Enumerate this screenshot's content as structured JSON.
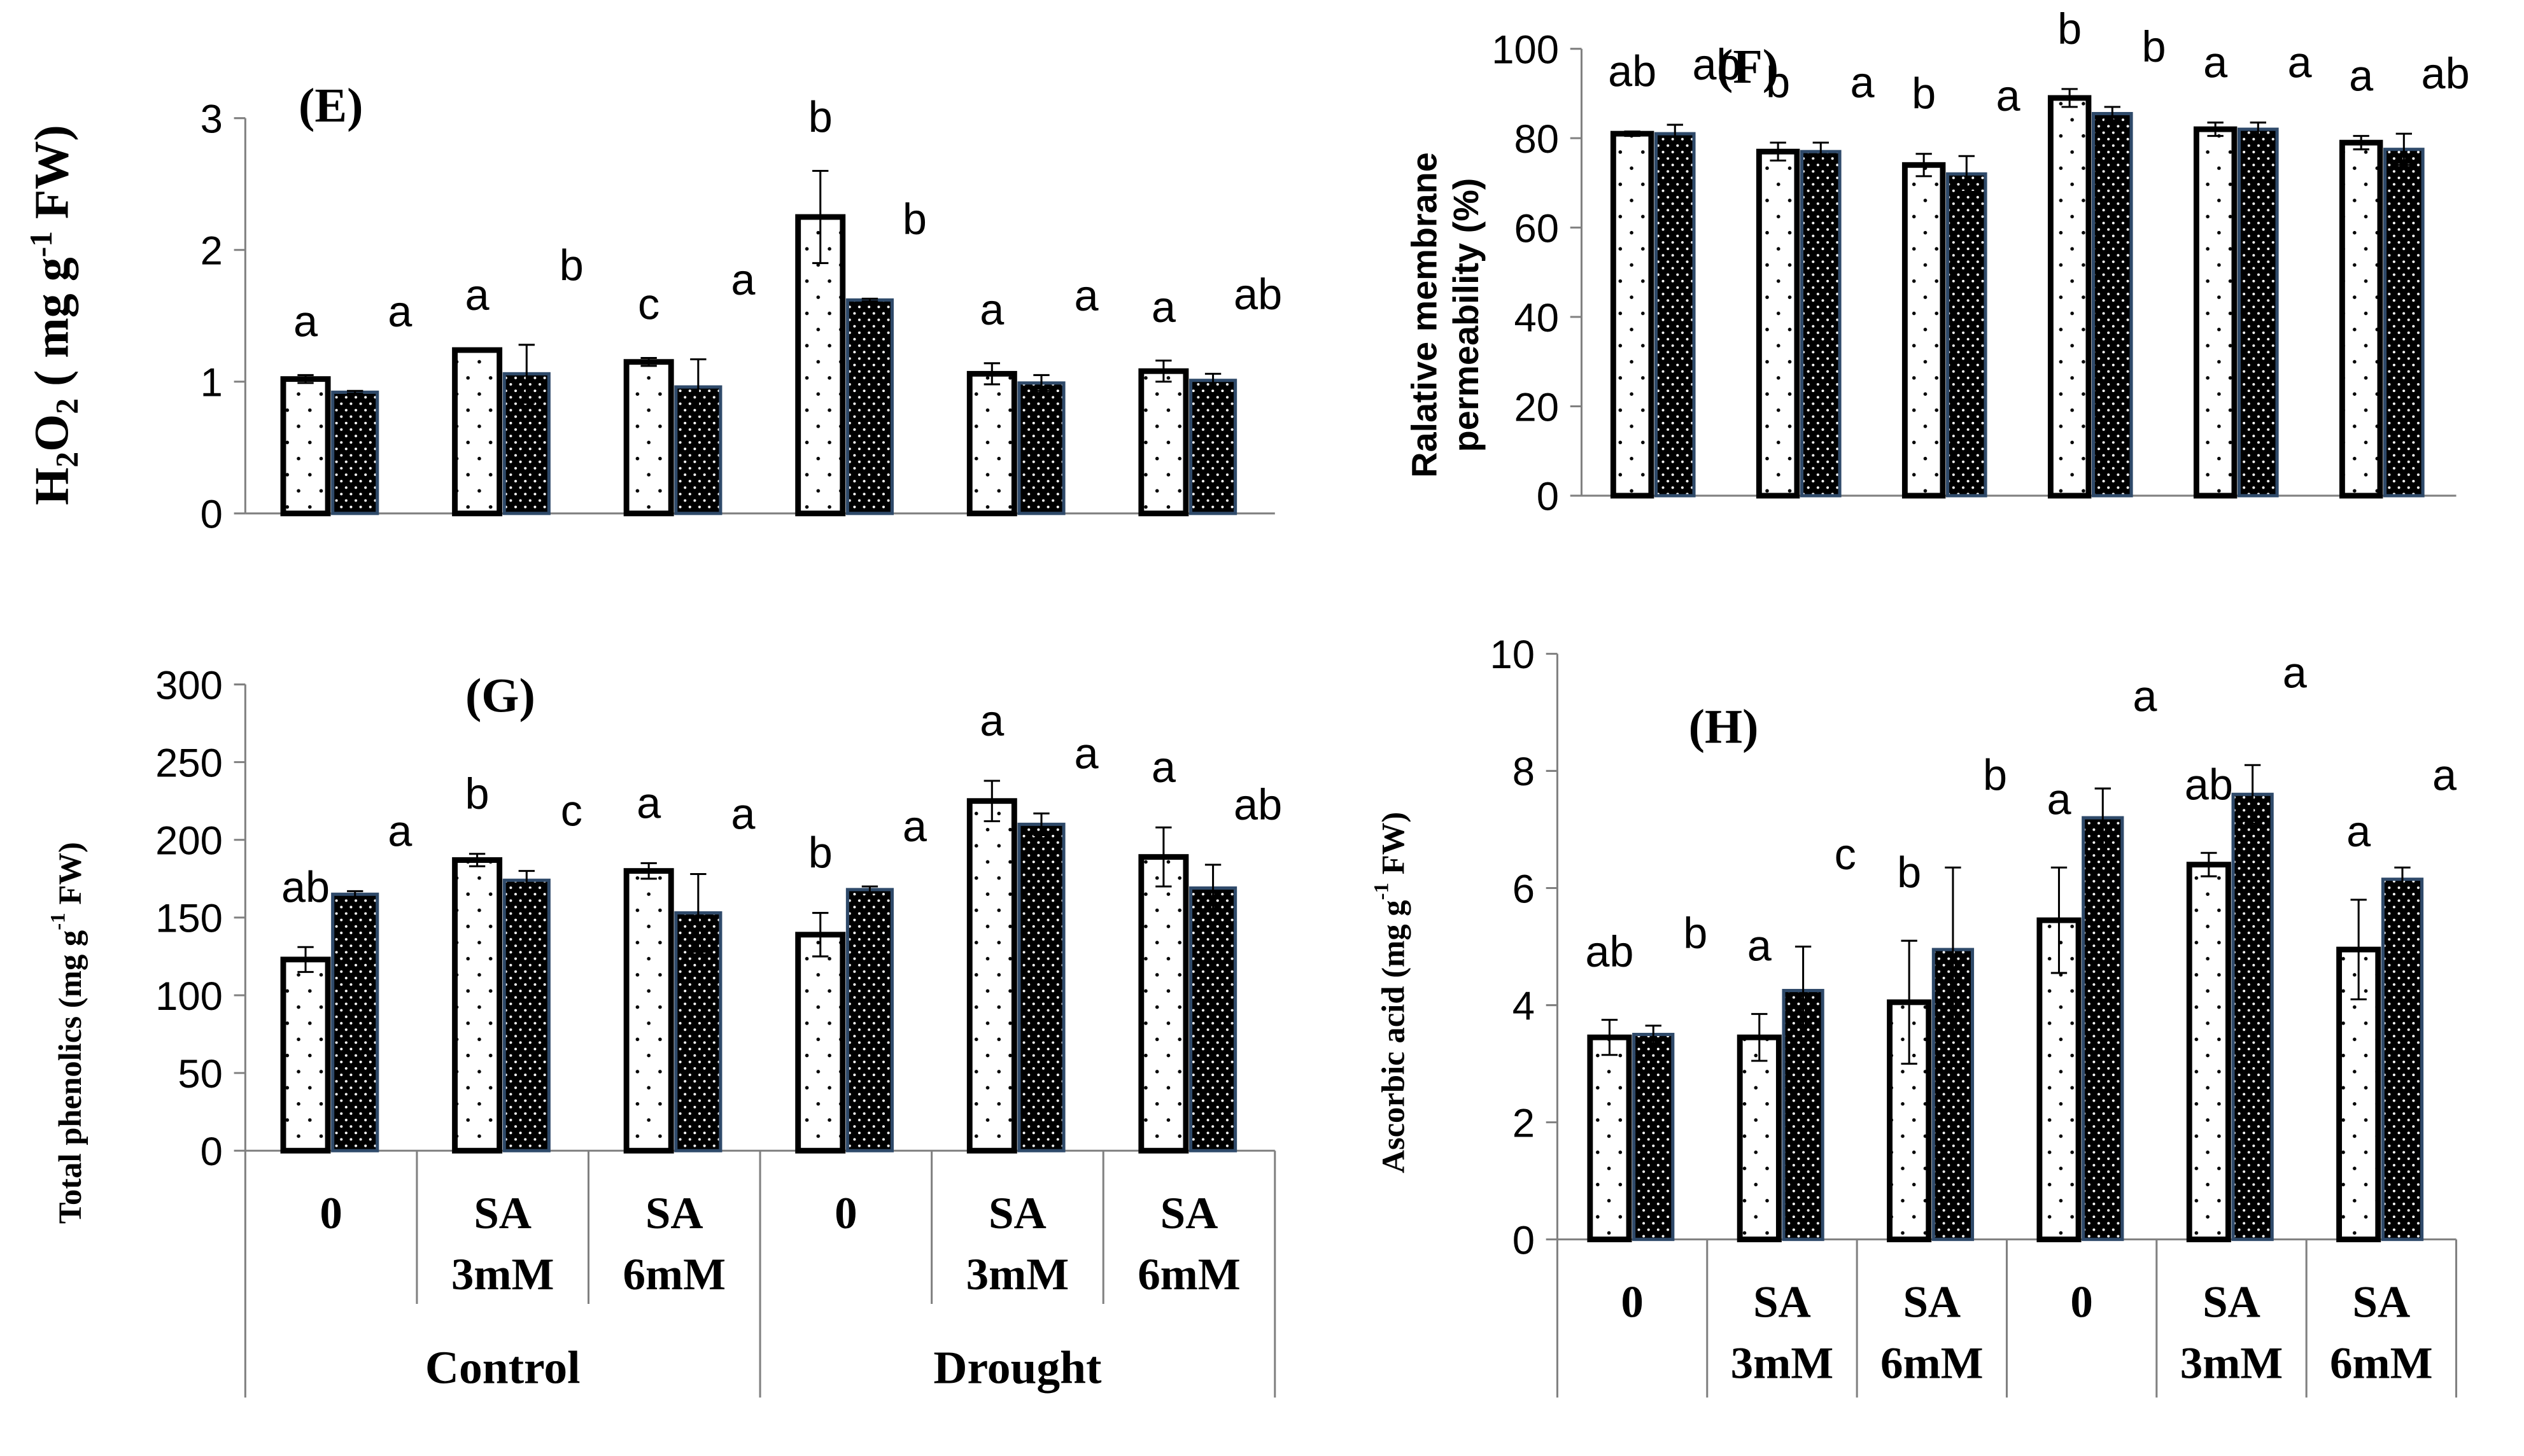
{
  "figure": {
    "categories": [
      "0",
      "SA 3mM",
      "SA 6mM",
      "0",
      "SA 3mM",
      "SA 6mM"
    ],
    "groups": [
      "Control",
      "Drought"
    ],
    "series_names": [
      "Series 1 (sparse dots)",
      "Series 2 (dense dots)"
    ]
  },
  "chart_data": [
    {
      "id": "E",
      "type": "bar",
      "title": "(E)",
      "ylabel": "H2O2 ( mg g-1 FW)",
      "ylabel_parts": [
        "H",
        "2",
        "O",
        "2",
        " ( mg g",
        "-1",
        " FW)"
      ],
      "ylim": [
        0,
        3
      ],
      "yticks": [
        0,
        1,
        2,
        3
      ],
      "categories": [
        "0",
        "SA 3mM",
        "SA 6mM",
        "0",
        "SA 3mM",
        "SA 6mM"
      ],
      "series": [
        {
          "name": "Series 1",
          "values": [
            1.02,
            1.24,
            1.15,
            2.25,
            1.06,
            1.08
          ],
          "errors": [
            0.03,
            0.01,
            0.03,
            0.35,
            0.08,
            0.08
          ],
          "labels": [
            "a",
            "a",
            "c",
            "b",
            "a",
            "a"
          ]
        },
        {
          "name": "Series 2",
          "values": [
            0.92,
            1.06,
            0.96,
            1.62,
            0.99,
            1.01
          ],
          "errors": [
            0.01,
            0.22,
            0.21,
            0.01,
            0.06,
            0.05
          ],
          "labels": [
            "a",
            "b",
            "a",
            "b",
            "a",
            "ab"
          ]
        }
      ]
    },
    {
      "id": "F",
      "type": "bar",
      "title": "(F)",
      "ylabel": "Ralative membrane permeability (%)",
      "ylabel_lines": [
        "Ralative membrane",
        "permeability (%)"
      ],
      "ylim": [
        0,
        100
      ],
      "yticks": [
        0,
        20,
        40,
        60,
        80,
        100
      ],
      "categories": [
        "0",
        "SA 3mM",
        "SA 6mM",
        "0",
        "SA 3mM",
        "SA 6mM"
      ],
      "series": [
        {
          "name": "Series 1",
          "values": [
            81,
            77,
            74,
            89,
            82,
            79
          ],
          "errors": [
            0.5,
            2,
            2.5,
            2,
            1.5,
            1.5
          ],
          "labels": [
            "ab",
            "b",
            "b",
            "b",
            "a",
            "a"
          ]
        },
        {
          "name": "Series 2",
          "values": [
            81,
            77,
            72,
            85.5,
            82,
            77.5
          ],
          "errors": [
            2,
            2,
            4,
            1.5,
            1.5,
            3.5
          ],
          "labels": [
            "ab",
            "a",
            "a",
            "b",
            "a",
            "ab"
          ]
        }
      ]
    },
    {
      "id": "G",
      "type": "bar",
      "title": "(G)",
      "ylabel": "Total phenolics (mg g-1 FW)",
      "ylabel_parts": [
        "Total phenolics (mg g",
        "-1",
        " FW)"
      ],
      "ylim": [
        0,
        300
      ],
      "yticks": [
        0,
        50,
        100,
        150,
        200,
        250,
        300
      ],
      "categories": [
        "0",
        "SA 3mM",
        "SA 6mM",
        "0",
        "SA 3mM",
        "SA 6mM"
      ],
      "groups": [
        "Control",
        "Drought"
      ],
      "series": [
        {
          "name": "Series 1",
          "values": [
            123,
            187,
            180,
            139,
            225,
            189
          ],
          "errors": [
            8,
            4,
            5,
            14,
            13,
            19
          ],
          "labels": [
            "ab",
            "b",
            "a",
            "b",
            "a",
            "a"
          ]
        },
        {
          "name": "Series 2",
          "values": [
            165,
            174,
            153,
            168,
            210,
            169
          ],
          "errors": [
            2,
            6,
            25,
            2,
            7,
            15
          ],
          "labels": [
            "a",
            "c",
            "a",
            "a",
            "a",
            "ab"
          ]
        }
      ]
    },
    {
      "id": "H",
      "type": "bar",
      "title": "(H)",
      "ylabel": "Ascorbic acid (mg g-1 FW)",
      "ylabel_parts": [
        "Ascorbic acid (mg g",
        "-1",
        " FW)"
      ],
      "ylim": [
        0,
        10
      ],
      "yticks": [
        0,
        2,
        4,
        6,
        8,
        10
      ],
      "categories": [
        "0",
        "SA 3mM",
        "SA 6mM",
        "0",
        "SA 3mM",
        "SA 6mM"
      ],
      "series": [
        {
          "name": "Series 1",
          "values": [
            3.45,
            3.45,
            4.05,
            5.45,
            6.4,
            4.95
          ],
          "errors": [
            0.3,
            0.4,
            1.05,
            0.9,
            0.2,
            0.85
          ],
          "labels": [
            "ab",
            "a",
            "b",
            "a",
            "ab",
            "a"
          ]
        },
        {
          "name": "Series 2",
          "values": [
            3.5,
            4.25,
            4.95,
            7.2,
            7.6,
            6.15
          ],
          "errors": [
            0.15,
            0.75,
            1.4,
            0.5,
            0.5,
            0.2
          ],
          "labels": [
            "b",
            "c",
            "b",
            "a",
            "a",
            "a"
          ]
        }
      ]
    }
  ]
}
